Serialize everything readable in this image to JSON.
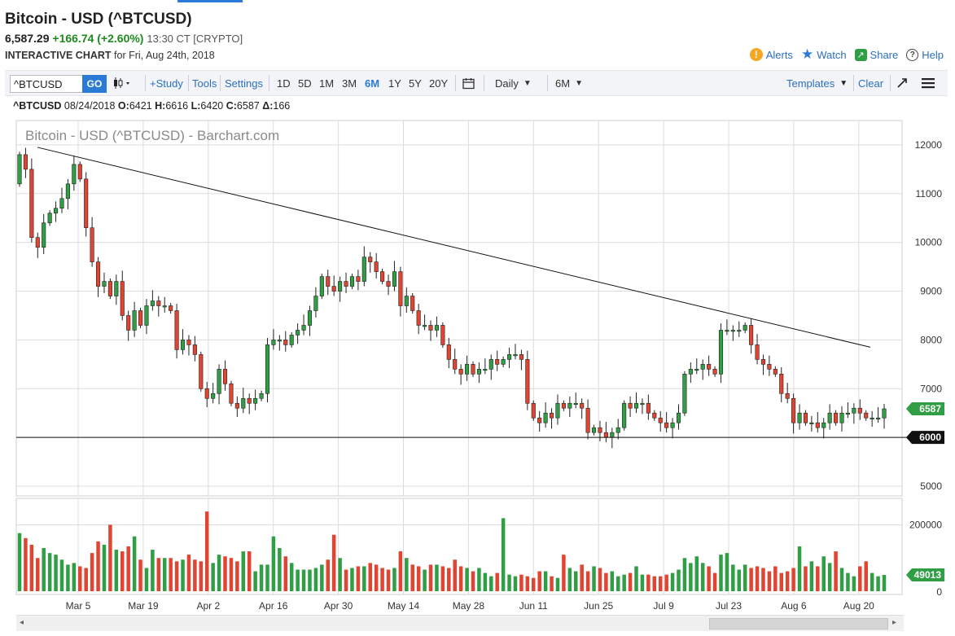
{
  "header": {
    "title": "Bitcoin - USD (^BTCUSD)",
    "last": "6,587.29",
    "change": "+166.74 (+2.60%)",
    "time": "13:30 CT [CRYPTO]",
    "interactive_label": "INTERACTIVE CHART",
    "interactive_date": "for Fri, Aug 24th, 2018"
  },
  "links": {
    "alerts": "Alerts",
    "watch": "Watch",
    "share": "Share",
    "help": "Help"
  },
  "toolbar": {
    "symbol_value": "^BTCUSD",
    "go": "GO",
    "study": "+Study",
    "tools": "Tools",
    "settings": "Settings",
    "ranges": [
      "1D",
      "5D",
      "1M",
      "3M",
      "6M",
      "1Y",
      "5Y",
      "20Y"
    ],
    "active_range": "6M",
    "interval": "Daily",
    "period": "6M",
    "templates": "Templates",
    "clear": "Clear"
  },
  "symline": {
    "symbol": "^BTCUSD",
    "date": "08/24/2018",
    "o_label": "O:",
    "o": "6421",
    "h_label": "H:",
    "h": "6616",
    "l_label": "L:",
    "l": "6420",
    "c_label": "C:",
    "c": "6587",
    "d_label": "Δ:",
    "d": "166"
  },
  "chart_data": {
    "type": "candlestick",
    "watermark": "Bitcoin - USD (^BTCUSD) - Barchart.com",
    "price_ticks": [
      5000,
      6000,
      7000,
      8000,
      9000,
      10000,
      11000,
      12000
    ],
    "price_range": [
      4800,
      12500
    ],
    "x_labels": [
      "Mar 5",
      "Mar 19",
      "Apr 2",
      "Apr 16",
      "Apr 30",
      "May 14",
      "May 28",
      "Jun 11",
      "Jun 25",
      "Jul 9",
      "Jul 23",
      "Aug 6",
      "Aug 20"
    ],
    "last_price_label": "6587",
    "support_level": 6000,
    "support_label": "6000",
    "trendline": {
      "from": [
        "Feb 26",
        11950
      ],
      "to": [
        "Aug 22",
        7850
      ]
    },
    "volume_ticks": [
      "200000",
      "0"
    ],
    "volume_last_label": "49013",
    "volume_range": [
      0,
      260000
    ],
    "colors": {
      "up": "#2f9e44",
      "down": "#e04432",
      "grid": "#dcdcdc",
      "line": "#111111",
      "label_green": "#2f9e44"
    },
    "closes": [
      11800,
      11500,
      10100,
      9900,
      10400,
      10600,
      10700,
      10900,
      11200,
      11600,
      11300,
      10300,
      9600,
      9100,
      9200,
      8900,
      9200,
      8500,
      8200,
      8600,
      8300,
      8700,
      8800,
      8700,
      8700,
      8600,
      7800,
      8000,
      7900,
      7700,
      7000,
      6800,
      6900,
      7400,
      7100,
      6700,
      6600,
      6800,
      6700,
      6800,
      6900,
      7900,
      8000,
      8000,
      7900,
      8100,
      8200,
      8300,
      8600,
      8900,
      9300,
      9100,
      9000,
      9200,
      9100,
      9300,
      9200,
      9700,
      9600,
      9400,
      9200,
      9100,
      9400,
      8700,
      8900,
      8600,
      8300,
      8300,
      8200,
      8300,
      7900,
      7600,
      7400,
      7300,
      7500,
      7300,
      7400,
      7400,
      7600,
      7500,
      7600,
      7700,
      7700,
      7600,
      6700,
      6400,
      6300,
      6500,
      6400,
      6700,
      6600,
      6700,
      6700,
      6600,
      6100,
      6200,
      6100,
      6000,
      6100,
      6200,
      6700,
      6600,
      6700,
      6700,
      6500,
      6400,
      6300,
      6200,
      6300,
      6500,
      7300,
      7400,
      7400,
      7500,
      7400,
      7300,
      8200,
      8200,
      8200,
      8200,
      8300,
      7900,
      7600,
      7500,
      7400,
      7300,
      6900,
      6800,
      6300,
      6500,
      6300,
      6300,
      6200,
      6300,
      6500,
      6300,
      6500,
      6500,
      6600,
      6500,
      6400,
      6400,
      6400,
      6587
    ],
    "volumes": [
      175000,
      160000,
      140000,
      100000,
      130000,
      115000,
      110000,
      95000,
      80000,
      85000,
      75000,
      70000,
      115000,
      150000,
      140000,
      200000,
      125000,
      120000,
      135000,
      165000,
      95000,
      70000,
      125000,
      100000,
      100000,
      100000,
      90000,
      95000,
      110000,
      95000,
      90000,
      240000,
      85000,
      110000,
      105000,
      100000,
      90000,
      120000,
      120000,
      60000,
      80000,
      80000,
      165000,
      130000,
      105000,
      85000,
      65000,
      65000,
      65000,
      70000,
      80000,
      95000,
      170000,
      100000,
      65000,
      70000,
      75000,
      75000,
      85000,
      80000,
      70000,
      65000,
      70000,
      120000,
      100000,
      80000,
      75000,
      65000,
      80000,
      80000,
      75000,
      70000,
      95000,
      75000,
      70000,
      60000,
      70000,
      55000,
      45000,
      55000,
      220000,
      50000,
      45000,
      50000,
      45000,
      40000,
      60000,
      60000,
      45000,
      40000,
      110000,
      70000,
      60000,
      80000,
      60000,
      75000,
      70000,
      55000,
      60000,
      45000,
      50000,
      55000,
      75000,
      50000,
      50000,
      45000,
      45000,
      50000,
      55000,
      65000,
      100000,
      85000,
      105000,
      85000,
      75000,
      55000,
      110000,
      115000,
      80000,
      65000,
      80000,
      70000,
      75000,
      70000,
      60000,
      75000,
      55000,
      60000,
      70000,
      135000,
      75000,
      90000,
      75000,
      105000,
      85000,
      120000,
      70000,
      55000,
      45000,
      75000,
      90000,
      55000,
      45000,
      49013
    ]
  }
}
